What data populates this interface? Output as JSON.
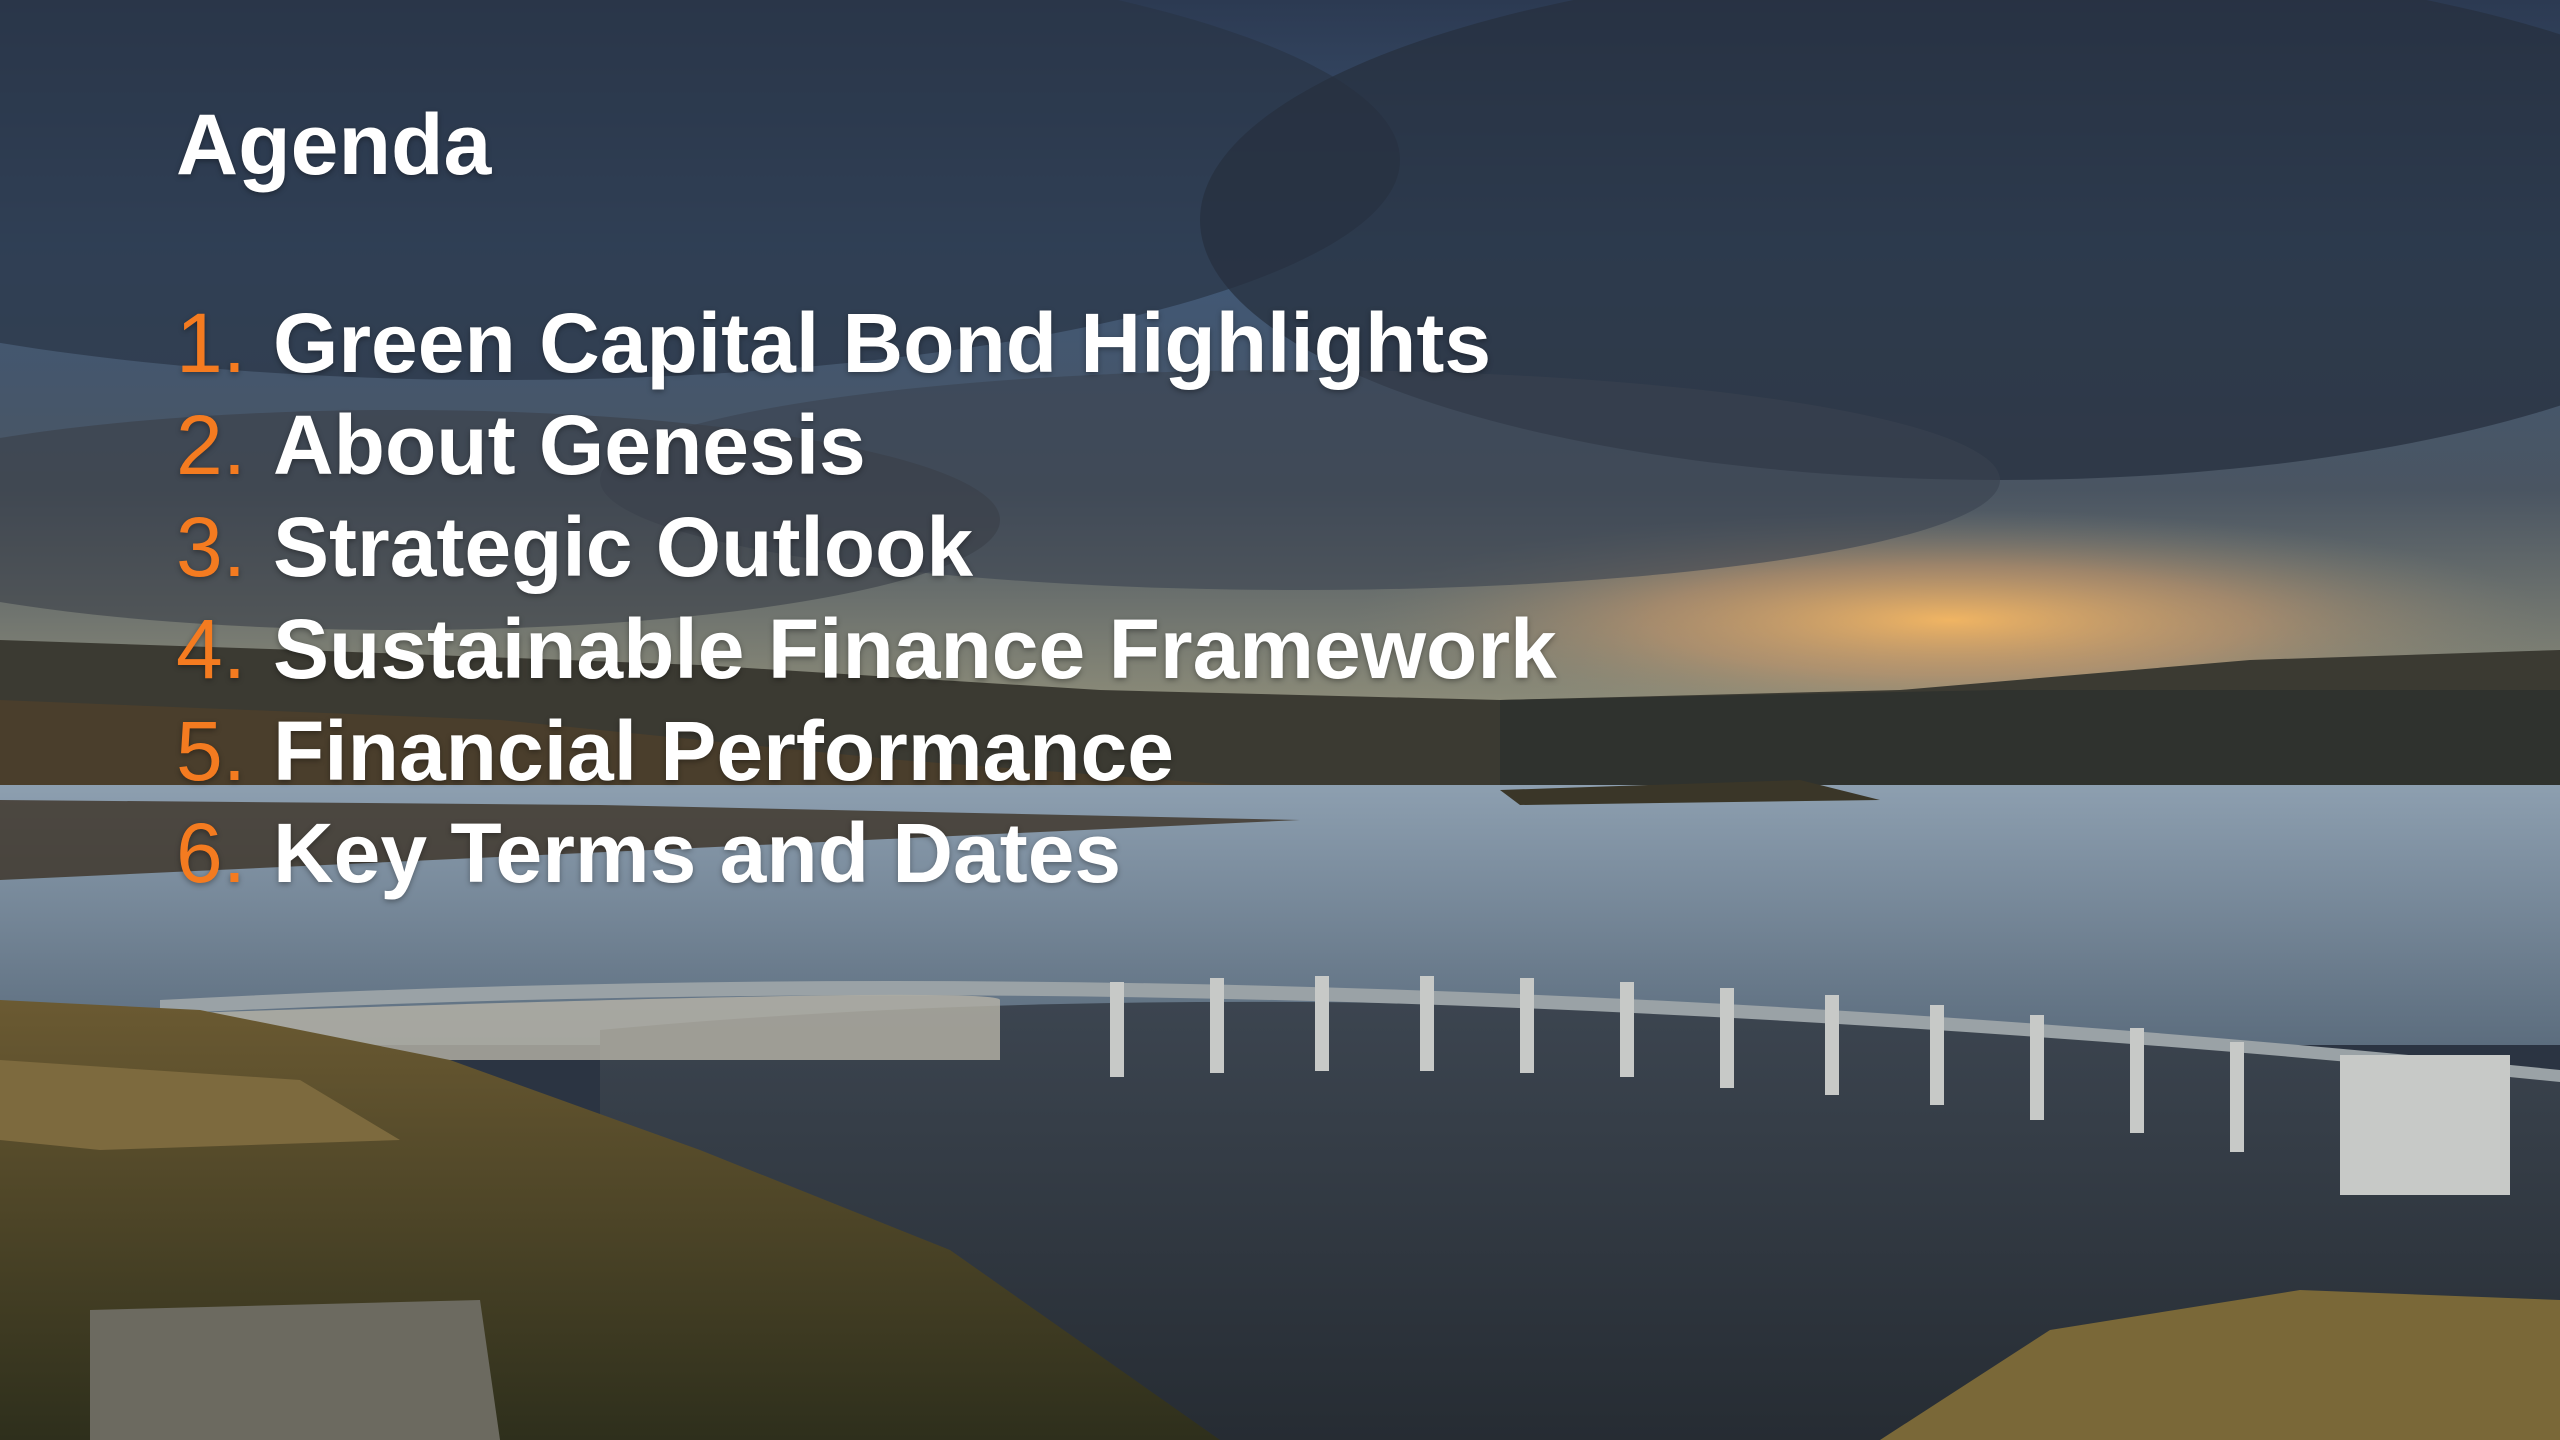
{
  "title": "Agenda",
  "items": [
    {
      "number": "1.",
      "text": "Green Capital Bond Highlights"
    },
    {
      "number": "2.",
      "text": "About Genesis"
    },
    {
      "number": "3.",
      "text": "Strategic Outlook"
    },
    {
      "number": "4.",
      "text": "Sustainable Finance Framework"
    },
    {
      "number": "5.",
      "text": "Financial Performance"
    },
    {
      "number": "6.",
      "text": "Key Terms and Dates"
    }
  ]
}
